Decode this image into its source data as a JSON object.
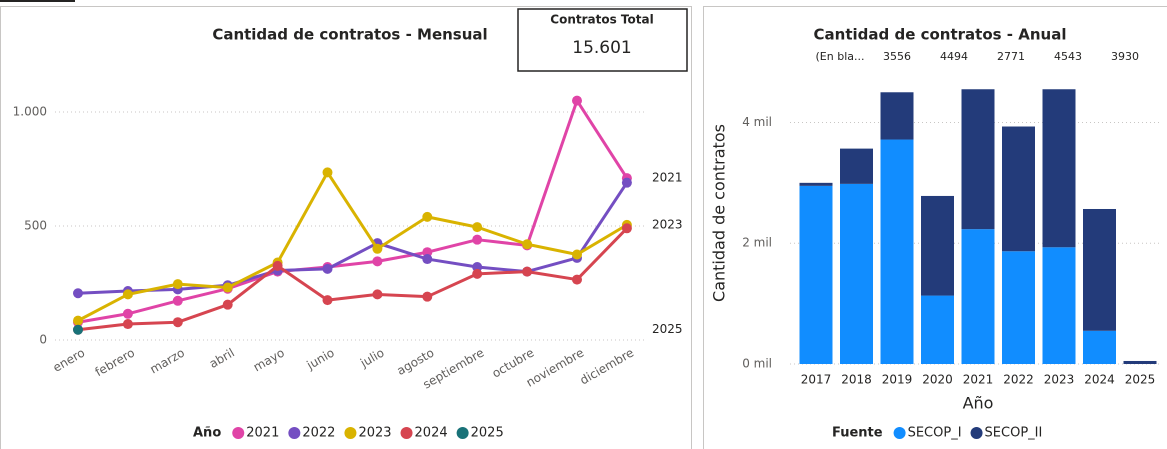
{
  "card": {
    "title": "Contratos Total",
    "value": "15.601"
  },
  "chart_data": [
    {
      "type": "line",
      "title": "Cantidad de contratos - Mensual",
      "categories": [
        "enero",
        "febrero",
        "marzo",
        "abril",
        "mayo",
        "junio",
        "julio",
        "agosto",
        "septiembre",
        "octubre",
        "noviembre",
        "diciembre"
      ],
      "series": [
        {
          "name": "2021",
          "color": "#e044a7",
          "values": [
            78,
            115,
            172,
            225,
            300,
            320,
            345,
            385,
            440,
            415,
            1050,
            710
          ]
        },
        {
          "name": "2022",
          "color": "#744ec2",
          "values": [
            205,
            215,
            222,
            240,
            305,
            312,
            425,
            355,
            320,
            300,
            360,
            690
          ]
        },
        {
          "name": "2023",
          "color": "#d9b300",
          "values": [
            85,
            200,
            245,
            230,
            340,
            735,
            400,
            540,
            495,
            420,
            375,
            505
          ]
        },
        {
          "name": "2024",
          "color": "#d64550",
          "values": [
            45,
            70,
            78,
            155,
            325,
            175,
            200,
            190,
            290,
            300,
            265,
            490
          ]
        },
        {
          "name": "2025",
          "color": "#197278",
          "values": [
            45,
            null,
            null,
            null,
            null,
            null,
            null,
            null,
            null,
            null,
            null,
            null
          ]
        }
      ],
      "end_labels": [
        "2021",
        "2023",
        "2025"
      ],
      "legend_title": "Año",
      "ylim": [
        0,
        1250
      ],
      "yticks": [
        0,
        500,
        {
          "value": 1000,
          "label": "1.000"
        }
      ],
      "grid": true
    },
    {
      "type": "bar",
      "title": "Cantidad de contratos - Anual",
      "annotations": [
        "(En bla...",
        "3556",
        "4494",
        "2771",
        "4543",
        "3930"
      ],
      "categories": [
        "2017",
        "2018",
        "2019",
        "2020",
        "2021",
        "2022",
        "2023",
        "2024",
        "2025"
      ],
      "series": [
        {
          "name": "SECOP_I",
          "color": "#118dff",
          "values": [
            2950,
            2983,
            3717,
            1133,
            2233,
            1867,
            1933,
            550,
            0
          ]
        },
        {
          "name": "SECOP_II",
          "color": "#233b7a",
          "values": [
            50,
            584,
            783,
            1650,
            2317,
            2066,
            2617,
            2017,
            50
          ]
        }
      ],
      "stacked": true,
      "legend_title": "Fuente",
      "x_label": "Año",
      "y_label": "Cantidad de contratos",
      "ylim": [
        0,
        5200
      ],
      "yticks": [
        {
          "value": 0,
          "label": "0 mil"
        },
        {
          "value": 2000,
          "label": "2 mil"
        },
        {
          "value": 4000,
          "label": "4 mil"
        }
      ],
      "grid": true
    }
  ]
}
